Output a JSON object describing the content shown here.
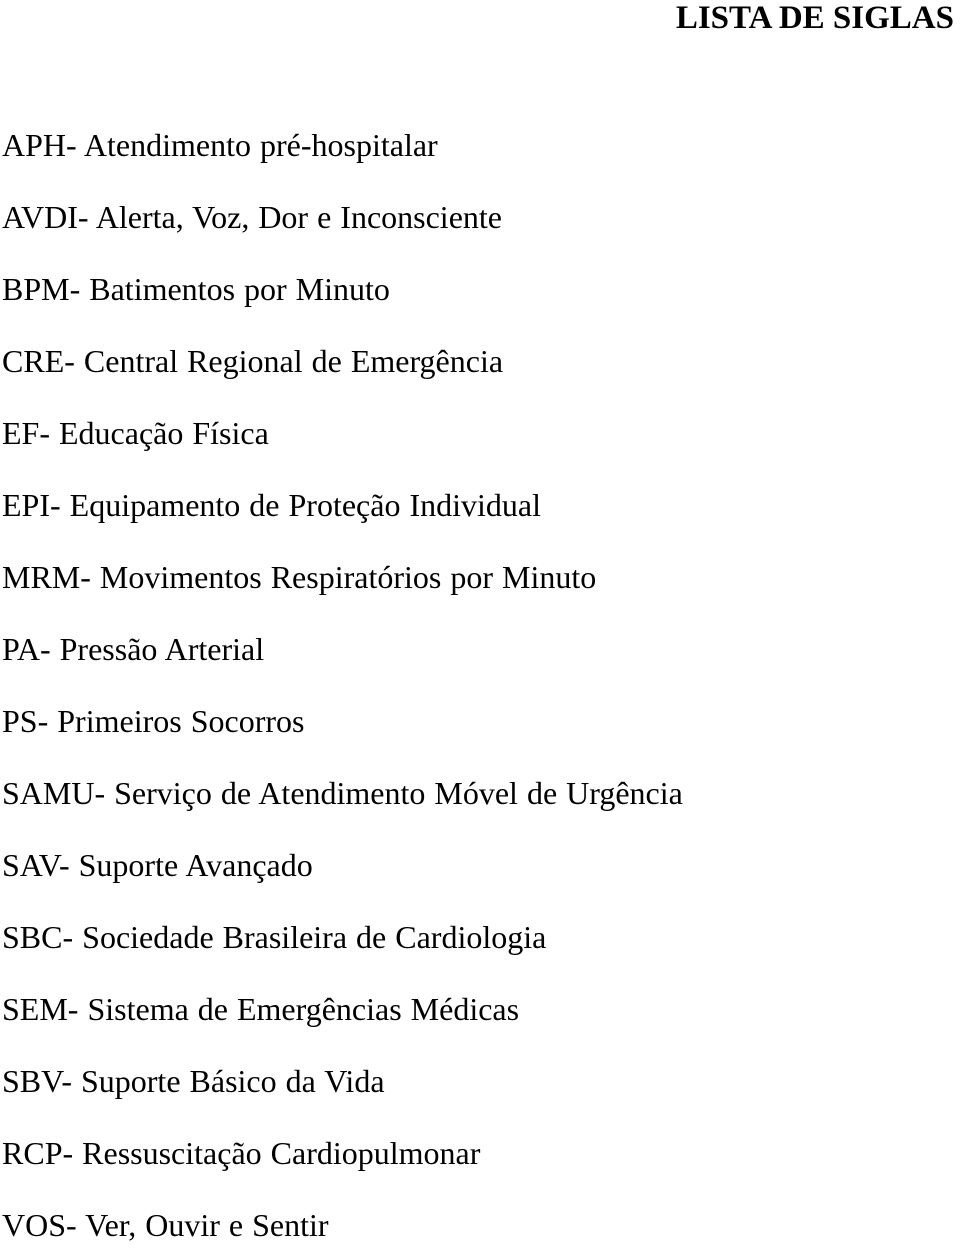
{
  "title": "LISTA DE SIGLAS",
  "entries": [
    "APH- Atendimento pré-hospitalar",
    "AVDI- Alerta, Voz, Dor e Inconsciente",
    "BPM- Batimentos por Minuto",
    "CRE- Central Regional de Emergência",
    "EF- Educação Física",
    "EPI- Equipamento de Proteção Individual",
    "MRM- Movimentos Respiratórios por Minuto",
    "PA- Pressão Arterial",
    "PS- Primeiros Socorros",
    "SAMU- Serviço de Atendimento Móvel de Urgência",
    "SAV- Suporte Avançado",
    "SBC- Sociedade Brasileira de Cardiologia",
    "SEM- Sistema de Emergências Médicas",
    "SBV- Suporte Básico da Vida",
    "RCP- Ressuscitação Cardiopulmonar",
    "VOS- Ver, Ouvir e Sentir"
  ]
}
